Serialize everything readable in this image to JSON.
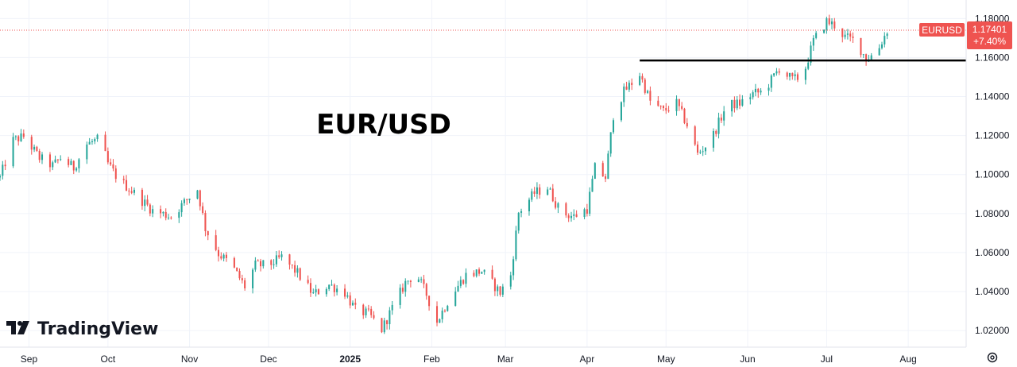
{
  "chart_data": {
    "type": "candlestick",
    "title": "EUR/USD",
    "symbol": "EURUSD",
    "last_price": "1.17401",
    "change": "+7.40%",
    "brand": "TradingView",
    "yticks": [
      1.02,
      1.04,
      1.06,
      1.08,
      1.1,
      1.12,
      1.14,
      1.16,
      1.18
    ],
    "ytick_labels": [
      "1.02000",
      "1.04000",
      "1.06000",
      "1.08000",
      "1.10000",
      "1.12000",
      "1.14000",
      "1.16000",
      "1.18000"
    ],
    "ylim": [
      1.0115,
      1.1895
    ],
    "xlim": [
      "2024-08-21",
      "2025-08-23"
    ],
    "xticks": [
      {
        "date": "2024-09-01",
        "label": "Sep"
      },
      {
        "date": "2024-10-01",
        "label": "Oct"
      },
      {
        "date": "2024-11-01",
        "label": "Nov"
      },
      {
        "date": "2024-12-01",
        "label": "Dec"
      },
      {
        "date": "2025-01-01",
        "label": "2025",
        "bold": true
      },
      {
        "date": "2025-02-01",
        "label": "Feb"
      },
      {
        "date": "2025-03-01",
        "label": "Mar"
      },
      {
        "date": "2025-04-01",
        "label": "Apr"
      },
      {
        "date": "2025-05-01",
        "label": "May"
      },
      {
        "date": "2025-06-01",
        "label": "Jun"
      },
      {
        "date": "2025-07-01",
        "label": "Jul"
      },
      {
        "date": "2025-08-01",
        "label": "Aug"
      }
    ],
    "support_line": {
      "value": 1.1585,
      "from": "2025-04-21",
      "to": "2025-08-23"
    },
    "up_color": "#26a69a",
    "down_color": "#ef5350",
    "close_path": [
      [
        "2024-08-21",
        1.0985
      ],
      [
        "2024-08-26",
        1.1175
      ],
      [
        "2024-08-30",
        1.1195
      ],
      [
        "2024-09-05",
        1.1085
      ],
      [
        "2024-09-10",
        1.1045
      ],
      [
        "2024-09-13",
        1.1085
      ],
      [
        "2024-09-18",
        1.1035
      ],
      [
        "2024-09-23",
        1.1155
      ],
      [
        "2024-09-28",
        1.1185
      ],
      [
        "2024-10-01",
        1.1055
      ],
      [
        "2024-10-05",
        1.0975
      ],
      [
        "2024-10-11",
        1.0905
      ],
      [
        "2024-10-18",
        1.0815
      ],
      [
        "2024-10-25",
        1.0785
      ],
      [
        "2024-11-01",
        1.0885
      ],
      [
        "2024-11-04",
        1.0925
      ],
      [
        "2024-11-07",
        1.0725
      ],
      [
        "2024-11-12",
        1.0595
      ],
      [
        "2024-11-17",
        1.0535
      ],
      [
        "2024-11-22",
        1.0425
      ],
      [
        "2024-11-26",
        1.0535
      ],
      [
        "2024-12-01",
        1.0535
      ],
      [
        "2024-12-06",
        1.0575
      ],
      [
        "2024-12-12",
        1.0495
      ],
      [
        "2024-12-18",
        1.0385
      ],
      [
        "2024-12-24",
        1.0435
      ],
      [
        "2024-12-30",
        1.0395
      ],
      [
        "2025-01-03",
        1.0305
      ],
      [
        "2025-01-08",
        1.0285
      ],
      [
        "2025-01-13",
        1.0205
      ],
      [
        "2025-01-17",
        1.0315
      ],
      [
        "2025-01-22",
        1.0445
      ],
      [
        "2025-01-26",
        1.0495
      ],
      [
        "2025-01-30",
        1.0385
      ],
      [
        "2025-02-03",
        1.0245
      ],
      [
        "2025-02-08",
        1.0375
      ],
      [
        "2025-02-14",
        1.0485
      ],
      [
        "2025-02-20",
        1.0505
      ],
      [
        "2025-02-27",
        1.0395
      ],
      [
        "2025-03-03",
        1.0485
      ],
      [
        "2025-03-06",
        1.0805
      ],
      [
        "2025-03-12",
        1.0905
      ],
      [
        "2025-03-17",
        1.0935
      ],
      [
        "2025-03-22",
        1.0805
      ],
      [
        "2025-03-27",
        1.0785
      ],
      [
        "2025-04-01",
        1.0825
      ],
      [
        "2025-04-04",
        1.1035
      ],
      [
        "2025-04-08",
        1.0985
      ],
      [
        "2025-04-11",
        1.1305
      ],
      [
        "2025-04-15",
        1.1425
      ],
      [
        "2025-04-21",
        1.1515
      ],
      [
        "2025-04-25",
        1.1375
      ],
      [
        "2025-04-30",
        1.1325
      ],
      [
        "2025-05-05",
        1.1365
      ],
      [
        "2025-05-09",
        1.1255
      ],
      [
        "2025-05-13",
        1.1105
      ],
      [
        "2025-05-18",
        1.1175
      ],
      [
        "2025-05-24",
        1.1355
      ],
      [
        "2025-05-29",
        1.1365
      ],
      [
        "2025-06-03",
        1.1415
      ],
      [
        "2025-06-07",
        1.1425
      ],
      [
        "2025-06-13",
        1.1545
      ],
      [
        "2025-06-18",
        1.1485
      ],
      [
        "2025-06-22",
        1.1505
      ],
      [
        "2025-06-26",
        1.1685
      ],
      [
        "2025-07-01",
        1.1785
      ],
      [
        "2025-07-04",
        1.1765
      ],
      [
        "2025-07-08",
        1.1705
      ],
      [
        "2025-07-12",
        1.1685
      ],
      [
        "2025-07-16",
        1.1595
      ],
      [
        "2025-07-20",
        1.1625
      ],
      [
        "2025-07-24",
        1.174
      ]
    ]
  }
}
